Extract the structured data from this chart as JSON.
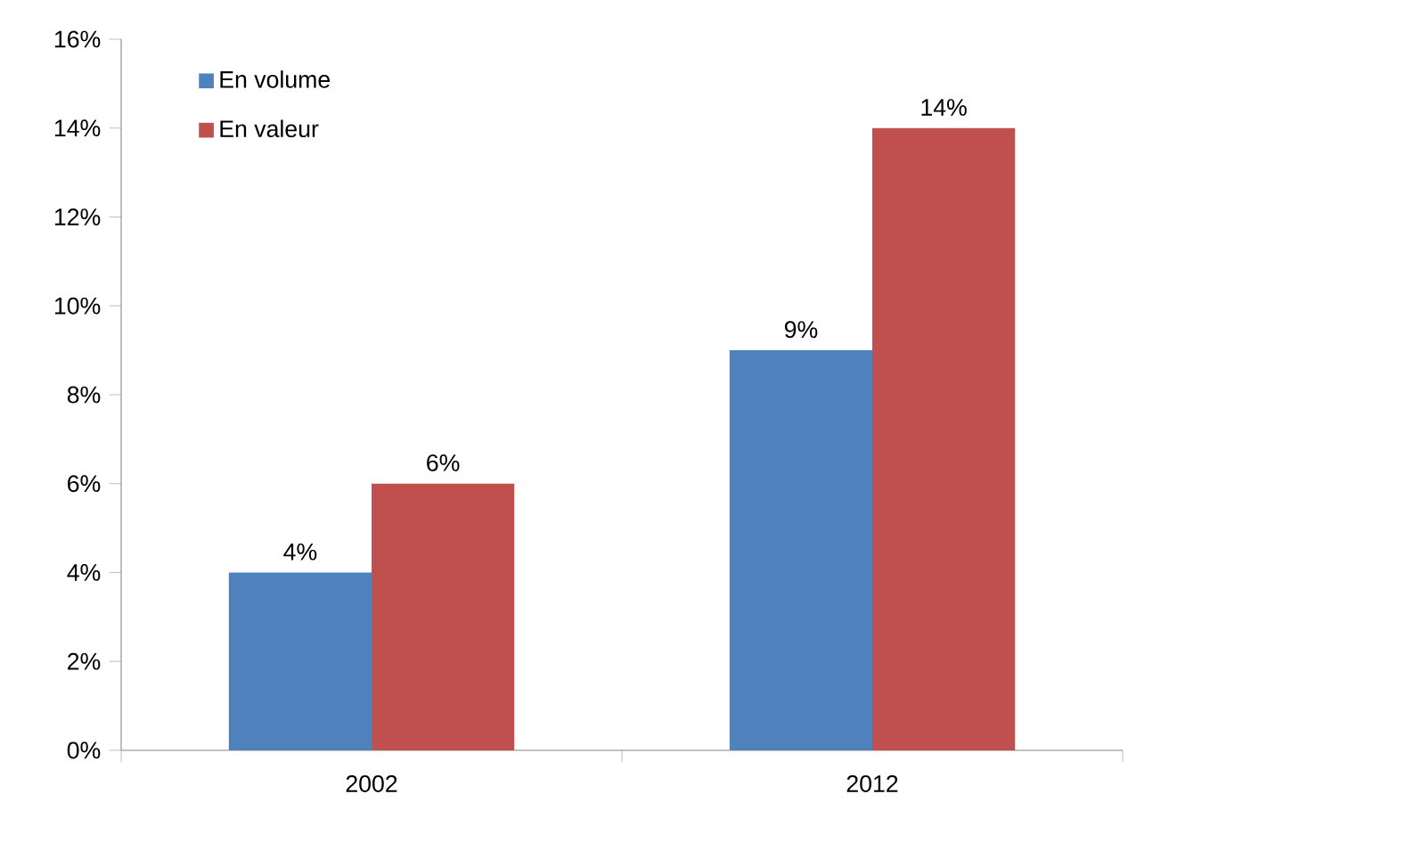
{
  "chart_data": {
    "type": "bar",
    "categories": [
      "2002",
      "2012"
    ],
    "series": [
      {
        "name": "En volume",
        "color": "#4f81bd",
        "values": [
          4,
          9
        ],
        "value_labels": [
          "4%",
          "9%"
        ]
      },
      {
        "name": "En valeur",
        "color": "#c0504d",
        "values": [
          6,
          14
        ],
        "value_labels": [
          "6%",
          "14%"
        ]
      }
    ],
    "ylim": [
      0,
      16
    ],
    "yticks": [
      {
        "value": 0,
        "label": "0%"
      },
      {
        "value": 2,
        "label": "2%"
      },
      {
        "value": 4,
        "label": "4%"
      },
      {
        "value": 6,
        "label": "6%"
      },
      {
        "value": 8,
        "label": "8%"
      },
      {
        "value": 10,
        "label": "10%"
      },
      {
        "value": 12,
        "label": "12%"
      },
      {
        "value": 14,
        "label": "14%"
      },
      {
        "value": 16,
        "label": "16%"
      }
    ],
    "legend": "top left"
  }
}
